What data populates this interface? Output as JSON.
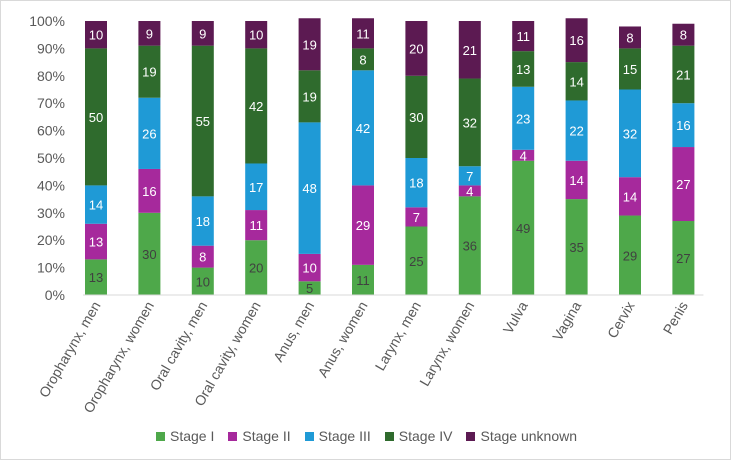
{
  "chart_data": {
    "type": "bar",
    "stacked": true,
    "categories": [
      "Oropharynx, men",
      "Oropharynx, women",
      "Oral cavity, men",
      "Oral cavity, women",
      "Anus, men",
      "Anus, women",
      "Larynx, men",
      "Larynx, women",
      "Vulva",
      "Vagina",
      "Cervix",
      "Penis"
    ],
    "series": [
      {
        "name": "Stage I",
        "color": "#4ea84a",
        "label_color": "#404040",
        "values": [
          13,
          30,
          10,
          20,
          5,
          11,
          25,
          36,
          49,
          35,
          29,
          27
        ]
      },
      {
        "name": "Stage II",
        "color": "#a6299c",
        "label_color": "#ffffff",
        "values": [
          13,
          16,
          8,
          11,
          10,
          29,
          7,
          4,
          4,
          14,
          14,
          27
        ]
      },
      {
        "name": "Stage III",
        "color": "#1f9ad6",
        "label_color": "#ffffff",
        "values": [
          14,
          26,
          18,
          17,
          48,
          42,
          18,
          7,
          23,
          22,
          32,
          16
        ]
      },
      {
        "name": "Stage IV",
        "color": "#2f6b2d",
        "label_color": "#ffffff",
        "values": [
          50,
          19,
          55,
          42,
          19,
          8,
          30,
          32,
          13,
          14,
          15,
          21
        ]
      },
      {
        "name": "Stage unknown",
        "color": "#5c1a52",
        "label_color": "#ffffff",
        "values": [
          10,
          9,
          9,
          10,
          19,
          11,
          20,
          21,
          11,
          16,
          8,
          8
        ]
      }
    ],
    "y_ticks": [
      "0%",
      "10%",
      "20%",
      "30%",
      "40%",
      "50%",
      "60%",
      "70%",
      "80%",
      "90%",
      "100%"
    ],
    "ylim": [
      0,
      100
    ],
    "grid": false,
    "legend": "bottom"
  }
}
